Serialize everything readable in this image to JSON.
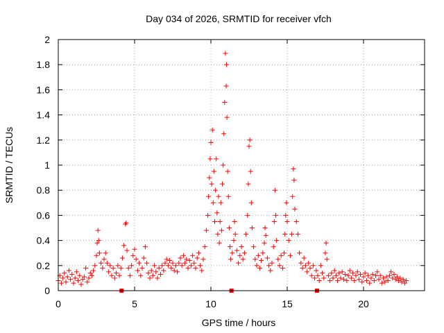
{
  "chart_data": {
    "type": "scatter",
    "title": "Day 034 of 2026, SRMTID for receiver vfch",
    "xlabel": "GPS time / hours",
    "ylabel": "SRMTID / TECUs",
    "xlim": [
      0,
      24
    ],
    "ylim": [
      0,
      2
    ],
    "x_ticks": [
      0,
      5,
      10,
      15,
      20
    ],
    "y_ticks": [
      0,
      0.2,
      0.4,
      0.6,
      0.8,
      1,
      1.2,
      1.4,
      1.6,
      1.8,
      2
    ],
    "x_tick_labels": [
      "0",
      "5",
      "10",
      "15",
      "20"
    ],
    "y_tick_labels": [
      "0",
      "0.2",
      "0.4",
      "0.6",
      "0.8",
      "1",
      "1.2",
      "1.4",
      "1.6",
      "1.8",
      "2"
    ],
    "grid": true,
    "marker": "+",
    "color": "#ff0000",
    "baseline_markers_x": [
      4.15,
      11.35,
      16.95
    ],
    "points": [
      [
        0.0,
        0.08
      ],
      [
        0.1,
        0.12
      ],
      [
        0.2,
        0.06
      ],
      [
        0.3,
        0.1
      ],
      [
        0.4,
        0.14
      ],
      [
        0.5,
        0.07
      ],
      [
        0.6,
        0.11
      ],
      [
        0.7,
        0.16
      ],
      [
        0.8,
        0.09
      ],
      [
        0.9,
        0.13
      ],
      [
        1.0,
        0.06
      ],
      [
        1.1,
        0.1
      ],
      [
        1.2,
        0.15
      ],
      [
        1.3,
        0.08
      ],
      [
        1.4,
        0.12
      ],
      [
        1.5,
        0.05
      ],
      [
        1.6,
        0.09
      ],
      [
        1.7,
        0.11
      ],
      [
        1.8,
        0.18
      ],
      [
        1.9,
        0.07
      ],
      [
        2.0,
        0.1
      ],
      [
        2.1,
        0.14
      ],
      [
        2.2,
        0.12
      ],
      [
        2.3,
        0.16
      ],
      [
        2.4,
        0.2
      ],
      [
        2.5,
        0.28
      ],
      [
        2.55,
        0.38
      ],
      [
        2.6,
        0.48
      ],
      [
        2.65,
        0.4
      ],
      [
        2.7,
        0.3
      ],
      [
        2.8,
        0.22
      ],
      [
        2.9,
        0.18
      ],
      [
        3.0,
        0.25
      ],
      [
        3.1,
        0.3
      ],
      [
        3.2,
        0.22
      ],
      [
        3.3,
        0.15
      ],
      [
        3.4,
        0.2
      ],
      [
        3.5,
        0.12
      ],
      [
        3.6,
        0.18
      ],
      [
        3.7,
        0.1
      ],
      [
        3.8,
        0.14
      ],
      [
        3.9,
        0.2
      ],
      [
        4.0,
        0.12
      ],
      [
        4.1,
        0.18
      ],
      [
        4.2,
        0.26
      ],
      [
        4.3,
        0.36
      ],
      [
        4.4,
        0.53
      ],
      [
        4.45,
        0.54
      ],
      [
        4.5,
        0.32
      ],
      [
        4.6,
        0.18
      ],
      [
        4.7,
        0.12
      ],
      [
        4.8,
        0.2
      ],
      [
        4.9,
        0.28
      ],
      [
        5.0,
        0.33
      ],
      [
        5.1,
        0.25
      ],
      [
        5.2,
        0.16
      ],
      [
        5.3,
        0.22
      ],
      [
        5.4,
        0.12
      ],
      [
        5.5,
        0.18
      ],
      [
        5.6,
        0.26
      ],
      [
        5.7,
        0.35
      ],
      [
        5.8,
        0.22
      ],
      [
        5.9,
        0.14
      ],
      [
        6.0,
        0.1
      ],
      [
        6.1,
        0.16
      ],
      [
        6.2,
        0.12
      ],
      [
        6.3,
        0.2
      ],
      [
        6.4,
        0.15
      ],
      [
        6.5,
        0.1
      ],
      [
        6.6,
        0.18
      ],
      [
        6.7,
        0.13
      ],
      [
        6.8,
        0.2
      ],
      [
        6.9,
        0.16
      ],
      [
        7.0,
        0.22
      ],
      [
        7.1,
        0.25
      ],
      [
        7.2,
        0.2
      ],
      [
        7.3,
        0.24
      ],
      [
        7.4,
        0.18
      ],
      [
        7.5,
        0.22
      ],
      [
        7.6,
        0.16
      ],
      [
        7.7,
        0.2
      ],
      [
        7.8,
        0.15
      ],
      [
        7.9,
        0.22
      ],
      [
        8.0,
        0.26
      ],
      [
        8.1,
        0.2
      ],
      [
        8.2,
        0.28
      ],
      [
        8.3,
        0.22
      ],
      [
        8.4,
        0.25
      ],
      [
        8.5,
        0.18
      ],
      [
        8.6,
        0.24
      ],
      [
        8.7,
        0.2
      ],
      [
        8.8,
        0.28
      ],
      [
        8.9,
        0.22
      ],
      [
        9.0,
        0.18
      ],
      [
        9.1,
        0.26
      ],
      [
        9.2,
        0.3
      ],
      [
        9.3,
        0.2
      ],
      [
        9.4,
        0.16
      ],
      [
        9.5,
        0.25
      ],
      [
        9.6,
        0.35
      ],
      [
        9.7,
        0.48
      ],
      [
        9.8,
        0.6
      ],
      [
        9.85,
        0.75
      ],
      [
        9.9,
        0.9
      ],
      [
        9.95,
        1.05
      ],
      [
        10.0,
        1.18
      ],
      [
        10.05,
        0.85
      ],
      [
        10.1,
        1.28
      ],
      [
        10.15,
        0.7
      ],
      [
        10.2,
        0.95
      ],
      [
        10.25,
        0.55
      ],
      [
        10.3,
        0.8
      ],
      [
        10.35,
        1.05
      ],
      [
        10.4,
        0.62
      ],
      [
        10.45,
        0.45
      ],
      [
        10.5,
        0.75
      ],
      [
        10.55,
        0.38
      ],
      [
        10.6,
        0.55
      ],
      [
        10.65,
        0.7
      ],
      [
        10.7,
        0.48
      ],
      [
        10.75,
        0.85
      ],
      [
        10.8,
        1.0
      ],
      [
        10.85,
        1.25
      ],
      [
        10.9,
        1.5
      ],
      [
        10.95,
        1.89
      ],
      [
        11.0,
        1.63
      ],
      [
        11.02,
        1.8
      ],
      [
        11.05,
        1.38
      ],
      [
        11.1,
        0.95
      ],
      [
        11.15,
        0.75
      ],
      [
        11.2,
        0.5
      ],
      [
        11.25,
        0.35
      ],
      [
        11.3,
        0.25
      ],
      [
        11.4,
        0.3
      ],
      [
        11.5,
        0.4
      ],
      [
        11.55,
        0.55
      ],
      [
        11.6,
        0.45
      ],
      [
        11.7,
        0.32
      ],
      [
        11.8,
        0.22
      ],
      [
        11.9,
        0.28
      ],
      [
        12.0,
        0.35
      ],
      [
        12.1,
        0.25
      ],
      [
        12.2,
        0.3
      ],
      [
        12.3,
        0.45
      ],
      [
        12.4,
        0.6
      ],
      [
        12.45,
        0.85
      ],
      [
        12.5,
        1.15
      ],
      [
        12.55,
        1.2
      ],
      [
        12.6,
        0.95
      ],
      [
        12.65,
        0.7
      ],
      [
        12.7,
        0.5
      ],
      [
        12.8,
        0.35
      ],
      [
        12.9,
        0.25
      ],
      [
        13.0,
        0.2
      ],
      [
        13.1,
        0.28
      ],
      [
        13.2,
        0.18
      ],
      [
        13.3,
        0.24
      ],
      [
        13.4,
        0.3
      ],
      [
        13.5,
        0.38
      ],
      [
        13.55,
        0.5
      ],
      [
        13.6,
        0.44
      ],
      [
        13.7,
        0.26
      ],
      [
        13.8,
        0.2
      ],
      [
        13.9,
        0.16
      ],
      [
        14.0,
        0.22
      ],
      [
        14.1,
        0.35
      ],
      [
        14.15,
        0.55
      ],
      [
        14.2,
        0.8
      ],
      [
        14.25,
        0.6
      ],
      [
        14.3,
        0.4
      ],
      [
        14.4,
        0.25
      ],
      [
        14.5,
        0.2
      ],
      [
        14.6,
        0.28
      ],
      [
        14.7,
        0.18
      ],
      [
        14.8,
        0.3
      ],
      [
        14.85,
        0.45
      ],
      [
        14.9,
        0.6
      ],
      [
        14.95,
        0.7
      ],
      [
        15.0,
        0.55
      ],
      [
        15.1,
        0.4
      ],
      [
        15.2,
        0.28
      ],
      [
        15.3,
        0.45
      ],
      [
        15.35,
        0.75
      ],
      [
        15.4,
        0.97
      ],
      [
        15.45,
        0.88
      ],
      [
        15.5,
        0.65
      ],
      [
        15.6,
        0.55
      ],
      [
        15.7,
        0.45
      ],
      [
        15.8,
        0.3
      ],
      [
        15.9,
        0.22
      ],
      [
        16.0,
        0.18
      ],
      [
        16.1,
        0.26
      ],
      [
        16.2,
        0.2
      ],
      [
        16.3,
        0.15
      ],
      [
        16.4,
        0.22
      ],
      [
        16.5,
        0.18
      ],
      [
        16.6,
        0.12
      ],
      [
        16.7,
        0.2
      ],
      [
        16.8,
        0.1
      ],
      [
        16.9,
        0.16
      ],
      [
        17.0,
        0.12
      ],
      [
        17.1,
        0.08
      ],
      [
        17.2,
        0.2
      ],
      [
        17.3,
        0.14
      ],
      [
        17.4,
        0.1
      ],
      [
        17.5,
        0.3
      ],
      [
        17.55,
        0.38
      ],
      [
        17.6,
        0.25
      ],
      [
        17.7,
        0.12
      ],
      [
        17.8,
        0.08
      ],
      [
        17.9,
        0.14
      ],
      [
        18.0,
        0.1
      ],
      [
        18.1,
        0.16
      ],
      [
        18.2,
        0.12
      ],
      [
        18.3,
        0.08
      ],
      [
        18.4,
        0.14
      ],
      [
        18.5,
        0.1
      ],
      [
        18.6,
        0.15
      ],
      [
        18.7,
        0.09
      ],
      [
        18.8,
        0.13
      ],
      [
        18.9,
        0.08
      ],
      [
        19.0,
        0.12
      ],
      [
        19.1,
        0.16
      ],
      [
        19.2,
        0.1
      ],
      [
        19.3,
        0.14
      ],
      [
        19.4,
        0.08
      ],
      [
        19.5,
        0.12
      ],
      [
        19.6,
        0.15
      ],
      [
        19.7,
        0.09
      ],
      [
        19.8,
        0.13
      ],
      [
        19.9,
        0.07
      ],
      [
        20.0,
        0.11
      ],
      [
        20.1,
        0.14
      ],
      [
        20.2,
        0.08
      ],
      [
        20.3,
        0.12
      ],
      [
        20.4,
        0.06
      ],
      [
        20.5,
        0.1
      ],
      [
        20.6,
        0.13
      ],
      [
        20.7,
        0.08
      ],
      [
        20.8,
        0.12
      ],
      [
        20.9,
        0.15
      ],
      [
        21.0,
        0.09
      ],
      [
        21.1,
        0.12
      ],
      [
        21.2,
        0.06
      ],
      [
        21.3,
        0.1
      ],
      [
        21.4,
        0.07
      ],
      [
        21.5,
        0.11
      ],
      [
        21.6,
        0.08
      ],
      [
        21.7,
        0.12
      ],
      [
        21.8,
        0.15
      ],
      [
        21.9,
        0.1
      ],
      [
        22.0,
        0.13
      ],
      [
        22.1,
        0.09
      ],
      [
        22.2,
        0.11
      ],
      [
        22.3,
        0.08
      ],
      [
        22.4,
        0.1
      ],
      [
        22.5,
        0.07
      ],
      [
        22.6,
        0.09
      ],
      [
        22.7,
        0.06
      ],
      [
        22.8,
        0.08
      ]
    ]
  }
}
